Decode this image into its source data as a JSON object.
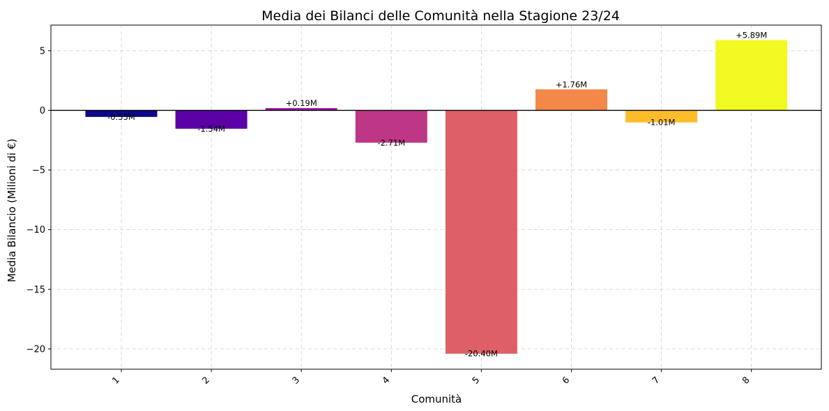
{
  "chart_data": {
    "type": "bar",
    "title": "Media dei Bilanci delle Comunità nella Stagione 23/24",
    "xlabel": "Comunità",
    "ylabel": "Media Bilancio (Milioni di €)",
    "categories": [
      "1",
      "2",
      "3",
      "4",
      "5",
      "6",
      "7",
      "8"
    ],
    "values": [
      -0.55,
      -1.54,
      0.19,
      -2.71,
      -20.4,
      1.76,
      -1.01,
      5.89
    ],
    "data_labels": [
      "-0.55M",
      "-1.54M",
      "+0.19M",
      "-2.71M",
      "-20.40M",
      "+1.76M",
      "-1.01M",
      "+5.89M"
    ],
    "colors": [
      "#0d0887",
      "#5c01a6",
      "#9c179e",
      "#bd3786",
      "#de5f65",
      "#f48849",
      "#febc2a",
      "#f0f921"
    ],
    "ylim": [
      -21.7,
      7.15
    ],
    "yticks": [
      5,
      0,
      -5,
      -10,
      -15,
      -20
    ],
    "ytick_labels": [
      "5",
      "0",
      "−5",
      "−10",
      "−15",
      "−20"
    ],
    "grid": true,
    "zero_line": true
  }
}
